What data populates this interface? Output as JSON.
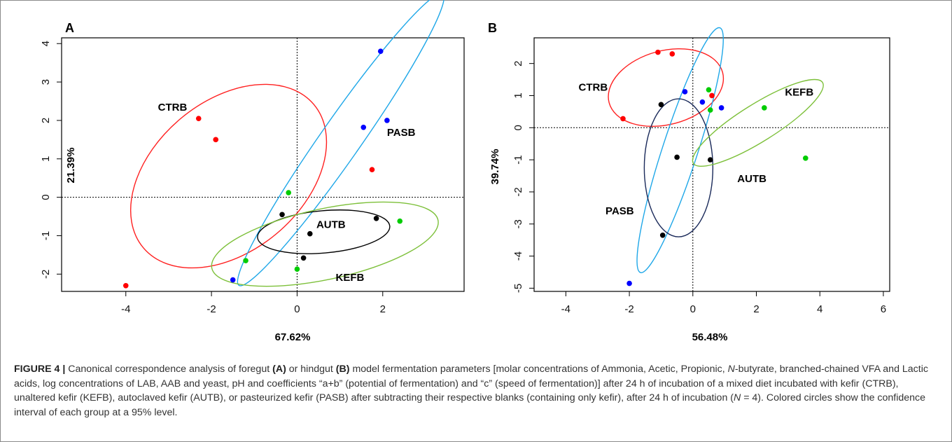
{
  "chart_data": [
    {
      "type": "scatter",
      "panel": "A",
      "xlabel": "67.62%",
      "ylabel": "21.39%",
      "xlim": [
        -5.5,
        3.9
      ],
      "ylim": [
        -2.45,
        4.15
      ],
      "xticks": [
        -4,
        -2,
        0,
        2
      ],
      "yticks": [
        -2,
        -1,
        0,
        1,
        2,
        3,
        4
      ],
      "reference_lines": {
        "x": 0,
        "y": 0,
        "style": "dotted"
      },
      "series": [
        {
          "name": "CTRB",
          "color": "#ff0000",
          "points": [
            [
              -2.3,
              2.05
            ],
            [
              -1.9,
              1.5
            ],
            [
              1.75,
              0.72
            ],
            [
              -4.0,
              -2.3
            ]
          ]
        },
        {
          "name": "PASB",
          "color": "#0000ff",
          "points": [
            [
              1.95,
              3.8
            ],
            [
              2.1,
              2.0
            ],
            [
              1.55,
              1.82
            ],
            [
              -1.5,
              -2.15
            ]
          ]
        },
        {
          "name": "AUTB",
          "color": "#000000",
          "points": [
            [
              -0.35,
              -0.45
            ],
            [
              0.3,
              -0.95
            ],
            [
              1.85,
              -0.55
            ],
            [
              0.15,
              -1.58
            ]
          ]
        },
        {
          "name": "KEFB",
          "color": "#00cc00",
          "points": [
            [
              -0.2,
              0.12
            ],
            [
              2.4,
              -0.62
            ],
            [
              -1.2,
              -1.65
            ],
            [
              0.0,
              -1.87
            ]
          ]
        }
      ],
      "ellipses": [
        {
          "group": "CTRB",
          "color": "#ff2020",
          "center": [
            -1.6,
            0.55
          ],
          "rx": 2.6,
          "ry": 1.95,
          "rot": -40
        },
        {
          "group": "PASB",
          "color": "#1ea7e8",
          "center": [
            1.02,
            1.5
          ],
          "rx": 4.15,
          "ry": 0.52,
          "rot": -55
        },
        {
          "group": "AUTB",
          "color": "#000000",
          "center": [
            0.62,
            -0.9
          ],
          "rx": 1.55,
          "ry": 0.55,
          "rot": -5
        },
        {
          "group": "KEFB",
          "color": "#7dc03a",
          "center": [
            0.65,
            -1.22
          ],
          "rx": 2.7,
          "ry": 0.92,
          "rot": -12
        }
      ],
      "labels": [
        {
          "text": "CTRB",
          "at": [
            -3.25,
            2.25
          ]
        },
        {
          "text": "PASB",
          "at": [
            2.1,
            1.6
          ]
        },
        {
          "text": "AUTB",
          "at": [
            0.45,
            -0.8
          ]
        },
        {
          "text": "KEFB",
          "at": [
            0.9,
            -2.18
          ]
        }
      ]
    },
    {
      "type": "scatter",
      "panel": "B",
      "xlabel": "56.48%",
      "ylabel": "39.74%",
      "xlim": [
        -5.0,
        6.2
      ],
      "ylim": [
        -5.1,
        2.8
      ],
      "xticks": [
        -4,
        -2,
        0,
        2,
        4,
        6
      ],
      "yticks": [
        -5,
        -4,
        -3,
        -2,
        -1,
        0,
        1,
        2
      ],
      "reference_lines": {
        "x": 0,
        "y": 0,
        "style": "dotted"
      },
      "series": [
        {
          "name": "CTRB",
          "color": "#ff0000",
          "points": [
            [
              -1.1,
              2.35
            ],
            [
              -0.65,
              2.3
            ],
            [
              -2.2,
              0.28
            ],
            [
              0.6,
              1.0
            ]
          ]
        },
        {
          "name": "PASB",
          "color": "#0000ff",
          "points": [
            [
              -0.25,
              1.12
            ],
            [
              0.3,
              0.8
            ],
            [
              0.9,
              0.62
            ],
            [
              -2.0,
              -4.85
            ]
          ]
        },
        {
          "name": "AUTB",
          "color": "#000000",
          "points": [
            [
              -1.0,
              0.72
            ],
            [
              -0.5,
              -0.92
            ],
            [
              0.55,
              -1.0
            ],
            [
              -0.95,
              -3.35
            ]
          ]
        },
        {
          "name": "KEFB",
          "color": "#00cc00",
          "points": [
            [
              0.5,
              1.18
            ],
            [
              0.55,
              0.55
            ],
            [
              2.25,
              0.62
            ],
            [
              3.55,
              -0.95
            ]
          ]
        }
      ],
      "ellipses": [
        {
          "group": "CTRB",
          "color": "#ff2020",
          "center": [
            -0.85,
            1.25
          ],
          "rx": 1.85,
          "ry": 1.15,
          "rot": -15
        },
        {
          "group": "PASB",
          "color": "#1ea7e8",
          "center": [
            -0.4,
            -0.7
          ],
          "rx": 4.05,
          "ry": 0.55,
          "rot": -72
        },
        {
          "group": "AUTB",
          "color": "#1a2a5a",
          "center": [
            -0.45,
            -1.25
          ],
          "rx": 1.08,
          "ry": 2.15,
          "rot": 0
        },
        {
          "group": "KEFB",
          "color": "#7dc03a",
          "center": [
            2.05,
            0.15
          ],
          "rx": 2.4,
          "ry": 0.58,
          "rot": -32
        }
      ],
      "labels": [
        {
          "text": "CTRB",
          "at": [
            -3.6,
            1.15
          ]
        },
        {
          "text": "KEFB",
          "at": [
            2.9,
            1.0
          ]
        },
        {
          "text": "AUTB",
          "at": [
            1.4,
            -1.7
          ]
        },
        {
          "text": "PASB",
          "at": [
            -2.75,
            -2.7
          ]
        }
      ]
    }
  ],
  "caption": {
    "figure_label": "FIGURE 4 |",
    "segments": [
      {
        "text": " Canonical correspondence analysis of foregut ",
        "style": "normal"
      },
      {
        "text": "(A)",
        "style": "bold"
      },
      {
        "text": " or hindgut ",
        "style": "normal"
      },
      {
        "text": "(B)",
        "style": "bold"
      },
      {
        "text": " model fermentation parameters [molar concentrations of Ammonia, Acetic, Propionic, ",
        "style": "normal"
      },
      {
        "text": "N",
        "style": "italic"
      },
      {
        "text": "-butyrate, branched-chained VFA and Lactic acids, log concentrations of LAB, AAB and yeast, pH and coefficients “a+b” (potential of fermentation) and “c” (speed of fermentation)] after 24 h of incubation of a mixed diet incubated with kefir (CTRB), unaltered kefir (KEFB), autoclaved kefir (AUTB), or pasteurized kefir (PASB) after subtracting their respective blanks (containing only kefir), after 24 h of incubation (",
        "style": "normal"
      },
      {
        "text": "N",
        "style": "italic"
      },
      {
        "text": " = 4). Colored circles show the confidence interval of each group at a 95% level.",
        "style": "normal"
      }
    ]
  }
}
